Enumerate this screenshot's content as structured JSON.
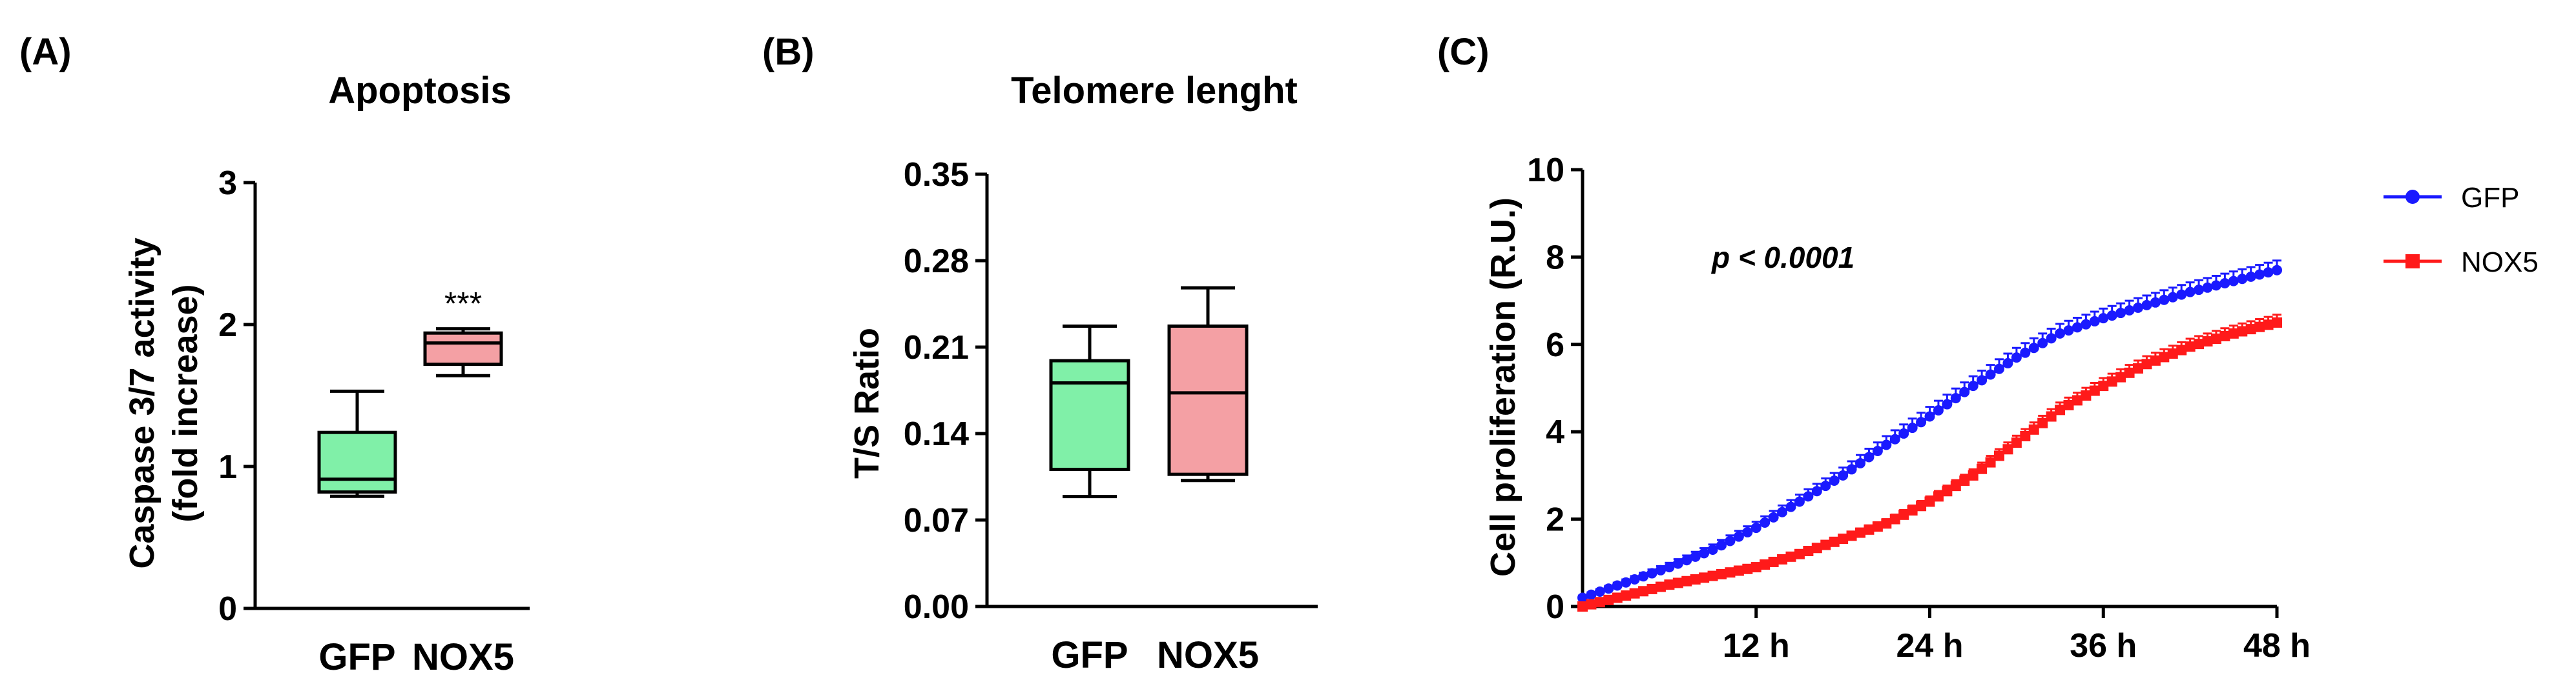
{
  "colors": {
    "gfp_box": "#80f0a8",
    "nox5_box": "#f4a0a4",
    "gfp_line": "#1a1aff",
    "nox5_line": "#ff1a1a",
    "axis": "#000000"
  },
  "chart_data": [
    {
      "panel": "(A)",
      "type": "box",
      "title": "Apoptosis",
      "ylabel": [
        "Caspase 3/7 activity",
        "(fold increase)"
      ],
      "ylim": [
        0,
        3
      ],
      "yticks": [
        "0",
        "1",
        "2",
        "3"
      ],
      "categories": [
        "GFP",
        "NOX5"
      ],
      "boxes": [
        {
          "name": "GFP",
          "min": 0.79,
          "q1": 0.82,
          "median": 0.91,
          "q3": 1.24,
          "max": 1.53
        },
        {
          "name": "NOX5",
          "min": 1.64,
          "q1": 1.72,
          "median": 1.87,
          "q3": 1.94,
          "max": 1.97
        }
      ],
      "annotation": "***"
    },
    {
      "panel": "(B)",
      "type": "box",
      "title": "Telomere lenght",
      "ylabel": [
        "T/S Ratio"
      ],
      "ylim": [
        0,
        0.35
      ],
      "yticks": [
        "0.00",
        "0.07",
        "0.14",
        "0.21",
        "0.28",
        "0.35"
      ],
      "categories": [
        "GFP",
        "NOX5"
      ],
      "boxes": [
        {
          "name": "GFP",
          "min": 0.089,
          "q1": 0.111,
          "median": 0.181,
          "q3": 0.199,
          "max": 0.227
        },
        {
          "name": "NOX5",
          "min": 0.102,
          "q1": 0.107,
          "median": 0.173,
          "q3": 0.227,
          "max": 0.258
        }
      ]
    },
    {
      "panel": "(C)",
      "type": "line",
      "ylabel": [
        "Cell proliferation (R.U.)"
      ],
      "ylim": [
        0,
        10
      ],
      "yticks": [
        "0",
        "2",
        "4",
        "6",
        "8",
        "10"
      ],
      "xlim": [
        0,
        48
      ],
      "xticks": [
        12,
        24,
        36,
        48
      ],
      "xtick_labels": [
        "12 h",
        "24 h",
        "36 h",
        "48 h"
      ],
      "annotation": "p < 0.0001",
      "legend_position": "top-right",
      "series": [
        {
          "name": "GFP",
          "marker": "circle",
          "x": [
            0,
            3,
            6,
            9,
            12,
            15,
            18,
            21,
            24,
            27,
            30,
            33,
            36,
            39,
            42,
            45,
            48
          ],
          "y": [
            0.2,
            0.55,
            0.9,
            1.3,
            1.8,
            2.4,
            3.0,
            3.7,
            4.35,
            5.05,
            5.7,
            6.25,
            6.6,
            6.9,
            7.2,
            7.45,
            7.7
          ],
          "err": [
            0.05,
            0.07,
            0.1,
            0.12,
            0.14,
            0.16,
            0.18,
            0.2,
            0.22,
            0.22,
            0.22,
            0.22,
            0.22,
            0.22,
            0.22,
            0.22,
            0.22
          ]
        },
        {
          "name": "NOX5",
          "marker": "square",
          "x": [
            0,
            3,
            6,
            9,
            12,
            15,
            18,
            21,
            24,
            27,
            30,
            33,
            36,
            39,
            42,
            45,
            48
          ],
          "y": [
            0.0,
            0.25,
            0.5,
            0.7,
            0.9,
            1.2,
            1.55,
            1.9,
            2.4,
            3.0,
            3.75,
            4.5,
            5.05,
            5.55,
            5.95,
            6.25,
            6.5
          ],
          "err": [
            0.03,
            0.04,
            0.05,
            0.06,
            0.07,
            0.08,
            0.09,
            0.1,
            0.12,
            0.14,
            0.16,
            0.17,
            0.18,
            0.18,
            0.18,
            0.18,
            0.18
          ]
        }
      ]
    }
  ]
}
